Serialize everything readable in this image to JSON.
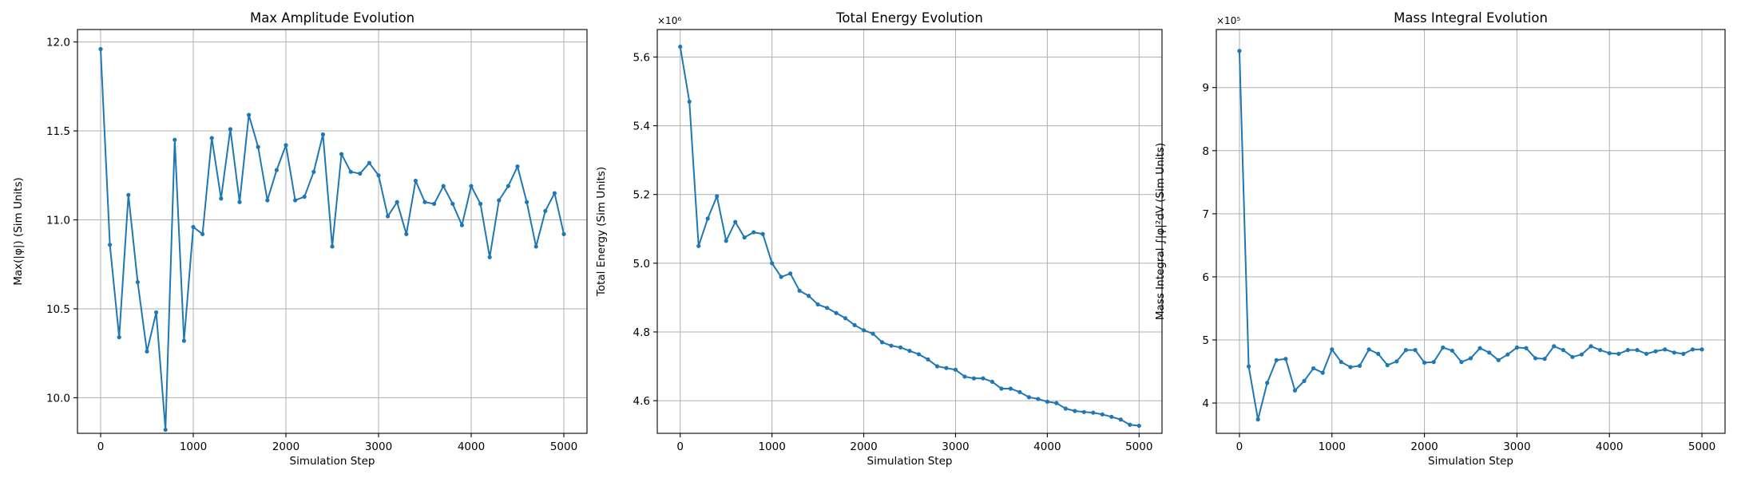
{
  "figure": {
    "background": "#ffffff",
    "series_color": "#1f77b4"
  },
  "chart_data": [
    {
      "type": "line",
      "title": "Max Amplitude Evolution",
      "xlabel": "Simulation Step",
      "ylabel": "Max(|φ|) (Sim Units)",
      "offset_label": "",
      "grid": true,
      "xlim": [
        -250,
        5250
      ],
      "ylim": [
        9.8,
        12.07
      ],
      "xticks": [
        0,
        1000,
        2000,
        3000,
        4000,
        5000
      ],
      "xtick_labels": [
        "0",
        "1000",
        "2000",
        "3000",
        "4000",
        "5000"
      ],
      "yticks": [
        10.0,
        10.5,
        11.0,
        11.5,
        12.0
      ],
      "ytick_labels": [
        "10.0",
        "10.5",
        "11.0",
        "11.5",
        "12.0"
      ],
      "x": [
        0,
        100,
        200,
        300,
        400,
        500,
        600,
        700,
        800,
        900,
        1000,
        1100,
        1200,
        1300,
        1400,
        1500,
        1600,
        1700,
        1800,
        1900,
        2000,
        2100,
        2200,
        2300,
        2400,
        2500,
        2600,
        2700,
        2800,
        2900,
        3000,
        3100,
        3200,
        3300,
        3400,
        3500,
        3600,
        3700,
        3800,
        3900,
        4000,
        4100,
        4200,
        4300,
        4400,
        4500,
        4600,
        4700,
        4800,
        4900,
        5000
      ],
      "y": [
        11.96,
        10.86,
        10.34,
        11.14,
        10.65,
        10.26,
        10.48,
        9.82,
        11.45,
        10.32,
        10.96,
        10.92,
        11.46,
        11.12,
        11.51,
        11.1,
        11.59,
        11.41,
        11.11,
        11.28,
        11.42,
        11.11,
        11.13,
        11.27,
        11.48,
        10.85,
        11.37,
        11.27,
        11.26,
        11.32,
        11.25,
        11.02,
        11.1,
        10.92,
        11.22,
        11.1,
        11.09,
        11.19,
        11.09,
        10.97,
        11.19,
        11.09,
        10.79,
        11.11,
        11.19,
        11.3,
        11.1,
        10.85,
        11.05,
        11.15,
        10.92
      ]
    },
    {
      "type": "line",
      "title": "Total Energy Evolution",
      "xlabel": "Simulation Step",
      "ylabel": "Total Energy (Sim Units)",
      "offset_label": "×10⁶",
      "grid": true,
      "xlim": [
        -250,
        5250
      ],
      "ylim": [
        4.505,
        5.68
      ],
      "xticks": [
        0,
        1000,
        2000,
        3000,
        4000,
        5000
      ],
      "xtick_labels": [
        "0",
        "1000",
        "2000",
        "3000",
        "4000",
        "5000"
      ],
      "yticks": [
        4.6,
        4.8,
        5.0,
        5.2,
        5.4,
        5.6
      ],
      "ytick_labels": [
        "4.6",
        "4.8",
        "5.0",
        "5.2",
        "5.4",
        "5.6"
      ],
      "x": [
        0,
        100,
        200,
        300,
        400,
        500,
        600,
        700,
        800,
        900,
        1000,
        1100,
        1200,
        1300,
        1400,
        1500,
        1600,
        1700,
        1800,
        1900,
        2000,
        2100,
        2200,
        2300,
        2400,
        2500,
        2600,
        2700,
        2800,
        2900,
        3000,
        3100,
        3200,
        3300,
        3400,
        3500,
        3600,
        3700,
        3800,
        3900,
        4000,
        4100,
        4200,
        4300,
        4400,
        4500,
        4600,
        4700,
        4800,
        4900,
        5000
      ],
      "y": [
        5.63,
        5.47,
        5.05,
        5.13,
        5.195,
        5.065,
        5.12,
        5.075,
        5.09,
        5.085,
        5.0,
        4.96,
        4.97,
        4.92,
        4.905,
        4.88,
        4.87,
        4.855,
        4.84,
        4.82,
        4.805,
        4.795,
        4.77,
        4.76,
        4.755,
        4.745,
        4.735,
        4.72,
        4.7,
        4.695,
        4.69,
        4.67,
        4.665,
        4.665,
        4.655,
        4.635,
        4.635,
        4.625,
        4.61,
        4.605,
        4.597,
        4.593,
        4.577,
        4.57,
        4.567,
        4.565,
        4.56,
        4.553,
        4.545,
        4.53,
        4.527
      ]
    },
    {
      "type": "line",
      "title": "Mass Integral Evolution",
      "xlabel": "Simulation Step",
      "ylabel": "Mass Integral ∫|φ|²dV (Sim Units)",
      "offset_label": "×10⁵",
      "grid": true,
      "xlim": [
        -250,
        5250
      ],
      "ylim": [
        3.52,
        9.92
      ],
      "xticks": [
        0,
        1000,
        2000,
        3000,
        4000,
        5000
      ],
      "xtick_labels": [
        "0",
        "1000",
        "2000",
        "3000",
        "4000",
        "5000"
      ],
      "yticks": [
        4,
        5,
        6,
        7,
        8,
        9
      ],
      "ytick_labels": [
        "4",
        "5",
        "6",
        "7",
        "8",
        "9"
      ],
      "x": [
        0,
        100,
        200,
        300,
        400,
        500,
        600,
        700,
        800,
        900,
        1000,
        1100,
        1200,
        1300,
        1400,
        1500,
        1600,
        1700,
        1800,
        1900,
        2000,
        2100,
        2200,
        2300,
        2400,
        2500,
        2600,
        2700,
        2800,
        2900,
        3000,
        3100,
        3200,
        3300,
        3400,
        3500,
        3600,
        3700,
        3800,
        3900,
        4000,
        4100,
        4200,
        4300,
        4400,
        4500,
        4600,
        4700,
        4800,
        4900,
        5000
      ],
      "y": [
        9.58,
        4.58,
        3.74,
        4.32,
        4.68,
        4.7,
        4.2,
        4.35,
        4.55,
        4.48,
        4.85,
        4.65,
        4.57,
        4.59,
        4.85,
        4.78,
        4.6,
        4.66,
        4.84,
        4.84,
        4.64,
        4.65,
        4.88,
        4.83,
        4.65,
        4.71,
        4.87,
        4.8,
        4.68,
        4.77,
        4.88,
        4.87,
        4.71,
        4.7,
        4.9,
        4.84,
        4.73,
        4.77,
        4.9,
        4.84,
        4.79,
        4.78,
        4.84,
        4.84,
        4.78,
        4.82,
        4.85,
        4.8,
        4.78,
        4.85,
        4.85
      ]
    }
  ]
}
